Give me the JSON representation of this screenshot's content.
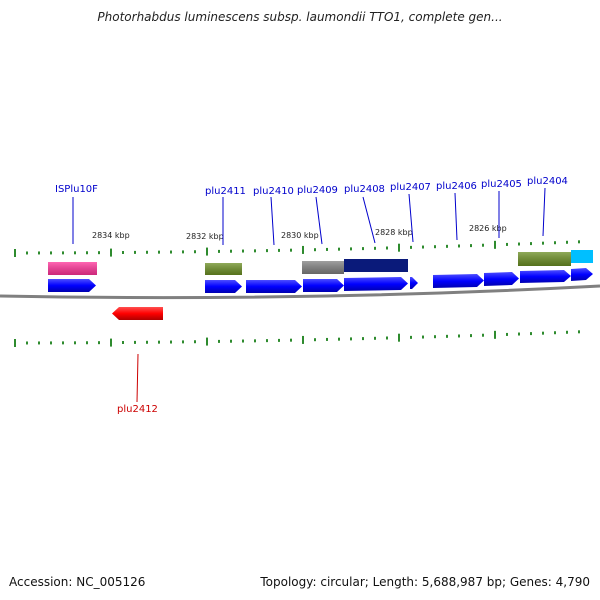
{
  "title": "Photorhabdus luminescens subsp. laumondii TTO1, complete gen...",
  "footer": {
    "accession": "Accession: NC_005126",
    "summary": "Topology: circular; Length: 5,688,987 bp; Genes: 4,790"
  },
  "colors": {
    "backbone": "#808080",
    "tick": "#2e8b2e",
    "gene_label": "#0000cc",
    "reverse_label": "#cc0000",
    "gene_arrow": "#0000ff",
    "reverse_arrow": "#ff0000"
  },
  "scale_labels": [
    "2834 kbp",
    "2832 kbp",
    "2830 kbp",
    "2828 kbp",
    "2826 kbp"
  ],
  "gene_labels": [
    "ISPlu10F",
    "plu2411",
    "plu2410",
    "plu2409",
    "plu2408",
    "plu2407",
    "plu2406",
    "plu2405",
    "plu2404"
  ],
  "reverse_labels": [
    "plu2412"
  ],
  "feature_colors": [
    "#ff3399",
    "#6b8e23",
    "#808080",
    "#0a1a7a",
    "#6b8e23",
    "#00bfff"
  ]
}
